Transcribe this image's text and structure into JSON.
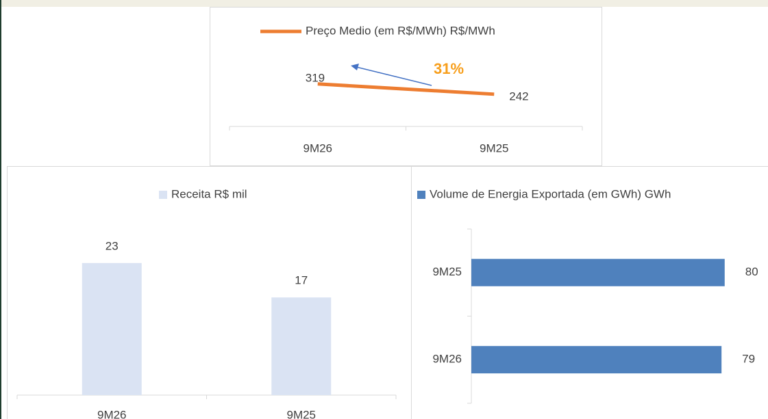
{
  "chart_data": [
    {
      "type": "line",
      "categories": [
        "9M26",
        "9M25"
      ],
      "series": [
        {
          "name": "Preço Medio (em R$/MWh) R$/MWh",
          "color": "#ed7d31",
          "values": [
            319,
            242
          ]
        }
      ],
      "ylim": [
        0,
        600
      ],
      "annotation": "31%",
      "annotation_color": "#f79e1b"
    },
    {
      "type": "bar",
      "categories": [
        "9M26",
        "9M25"
      ],
      "series": [
        {
          "name": "Receita R$ mil",
          "color": "#dae3f3",
          "values": [
            23,
            17
          ]
        }
      ],
      "ylim": [
        0,
        30
      ]
    },
    {
      "type": "bar",
      "orientation": "horizontal",
      "categories": [
        "9M26",
        "9M25"
      ],
      "series": [
        {
          "name": "Volume de Energia Exportada (em GWh) GWh",
          "color": "#4f81bd",
          "values": [
            79,
            80
          ]
        }
      ],
      "xlim": [
        0,
        90
      ]
    }
  ]
}
